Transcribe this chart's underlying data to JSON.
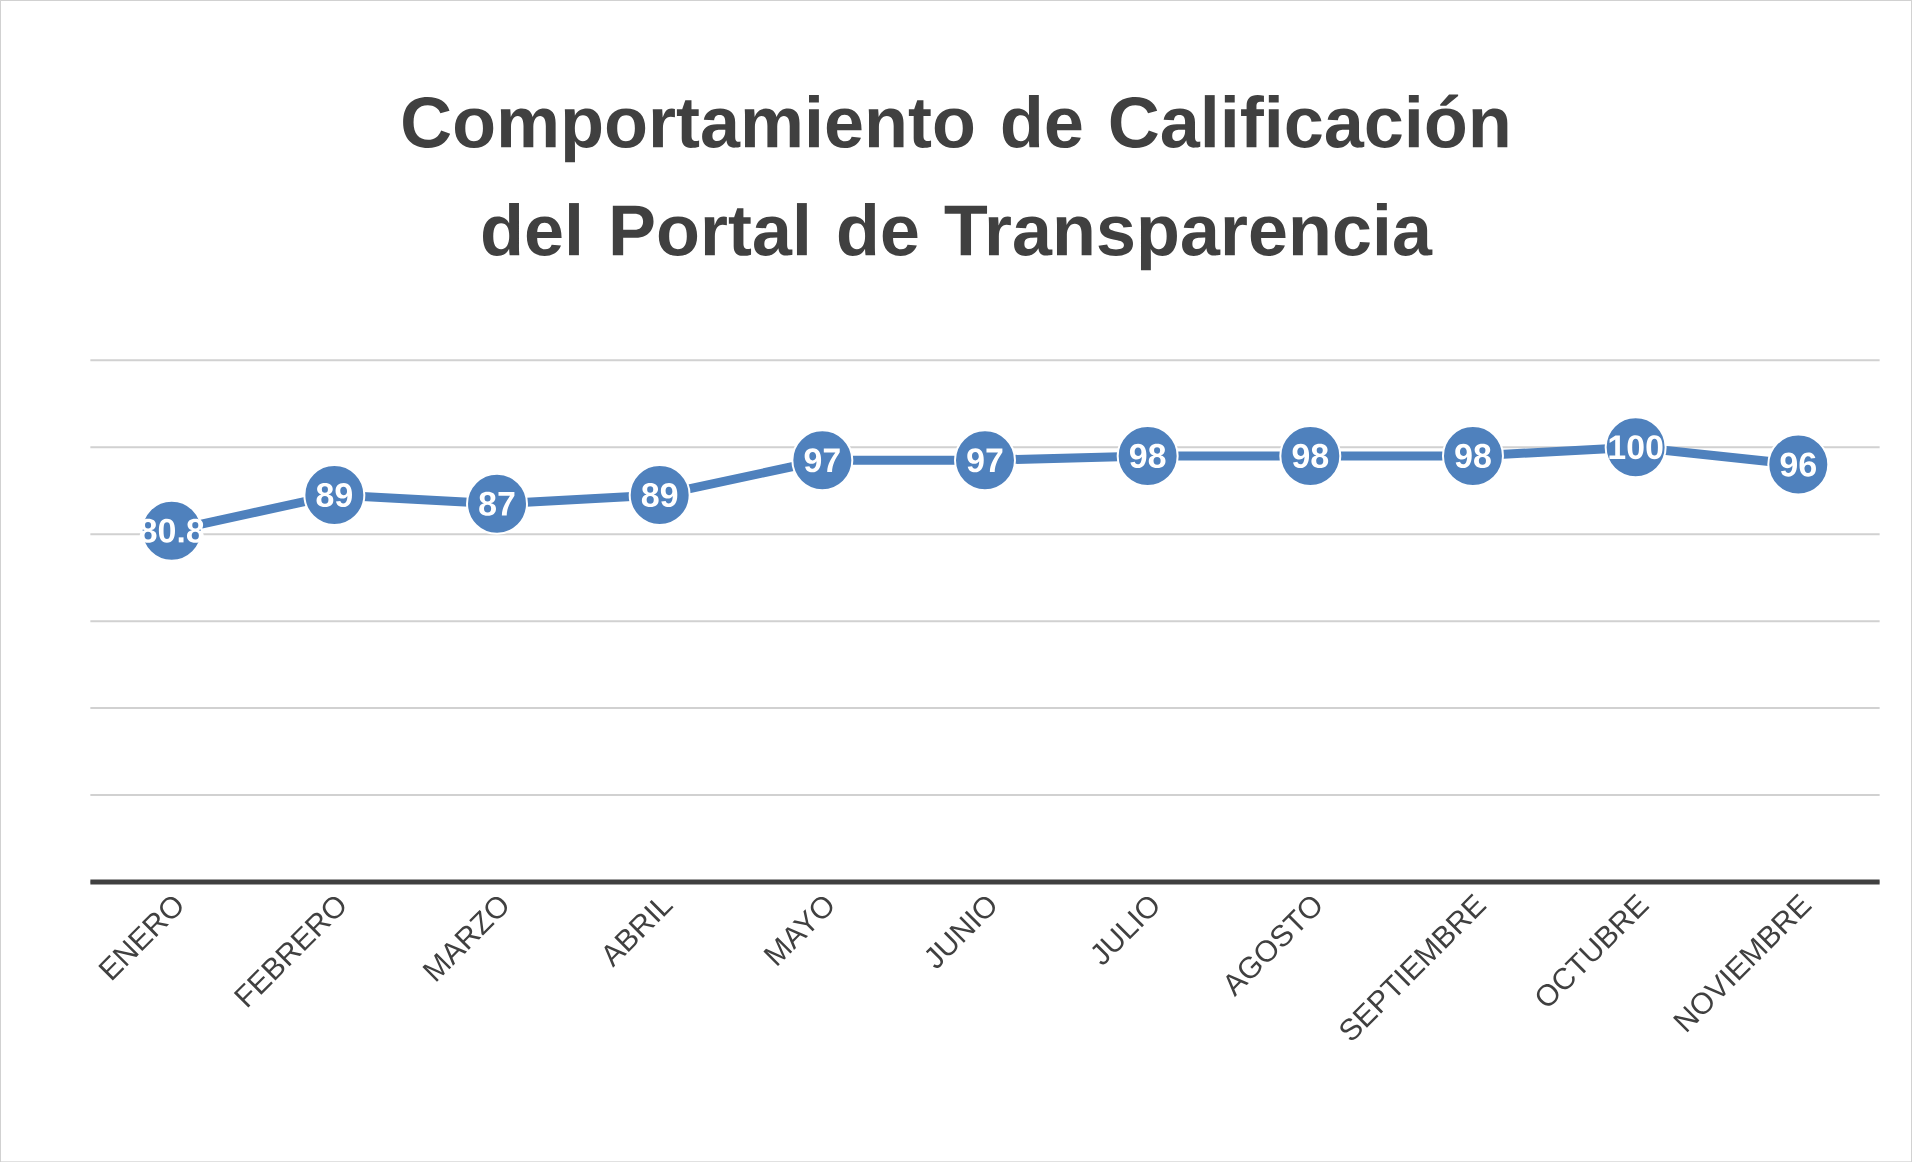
{
  "chart_data": {
    "type": "line",
    "title": "Comportamiento de Calificación del Portal de Transparencia",
    "categories": [
      "ENERO",
      "FEBRERO",
      "MARZO",
      "ABRIL",
      "MAYO",
      "JUNIO",
      "JULIO",
      "AGOSTO",
      "SEPTIEMBRE",
      "OCTUBRE",
      "NOVIEMBRE"
    ],
    "values": [
      80.8,
      89,
      87,
      89,
      97,
      97,
      98,
      98,
      98,
      100,
      96
    ],
    "color": "#4f81bd",
    "marker": "circle",
    "data_labels": true,
    "grid": "y",
    "tick_labels": "x",
    "ylim": [
      0,
      120
    ],
    "yticks": [
      {
        "value": 0,
        "label": null
      },
      {
        "value": 20,
        "label": null
      },
      {
        "value": 40,
        "label": null
      },
      {
        "value": 60,
        "label": null
      },
      {
        "value": 80,
        "label": null
      },
      {
        "value": 100,
        "label": null
      },
      {
        "value": 120,
        "label": null
      }
    ]
  }
}
